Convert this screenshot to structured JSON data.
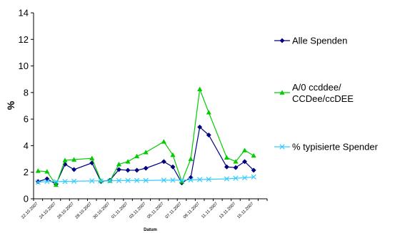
{
  "chart_data": {
    "type": "line",
    "title": "",
    "xlabel": "Datum",
    "ylabel": "%",
    "ylim": [
      0,
      14
    ],
    "yticks": [
      0,
      2,
      4,
      6,
      8,
      10,
      12,
      14
    ],
    "grid": false,
    "legend_position": "right",
    "x": [
      "22.10.2007",
      "23.10.2007",
      "24.10.2007",
      "25.10.2007",
      "26.10.2007",
      "27.10.2007",
      "28.10.2007",
      "29.10.2007",
      "30.10.2007",
      "31.10.2007",
      "01.11.2007",
      "02.11.2007",
      "03.11.2007",
      "04.11.2007",
      "05.11.2007",
      "06.11.2007",
      "07.11.2007",
      "08.11.2007",
      "09.11.2007",
      "10.11.2007",
      "11.11.2007",
      "12.11.2007",
      "13.11.2007",
      "14.11.2007",
      "15.11.2007",
      "16.11.2007"
    ],
    "x_tick_labels": [
      "22.10.2007",
      "24.10.2007",
      "26.10.2007",
      "28.10.2007",
      "30.10.2007",
      "01.11.2007",
      "03.11.2007",
      "05.11.2007",
      "07.11.2007",
      "09.11.2007",
      "11.11.2007",
      "13.11.2007",
      "15.11.2007"
    ],
    "series": [
      {
        "name": "Alle Spenden",
        "color": "#000080",
        "marker": "diamond",
        "x": [
          "22.10.2007",
          "23.10.2007",
          "24.10.2007",
          "25.10.2007",
          "26.10.2007",
          "28.10.2007",
          "29.10.2007",
          "30.10.2007",
          "31.10.2007",
          "01.11.2007",
          "02.11.2007",
          "03.11.2007",
          "05.11.2007",
          "06.11.2007",
          "07.11.2007",
          "08.11.2007",
          "09.11.2007",
          "10.11.2007",
          "12.11.2007",
          "13.11.2007",
          "14.11.2007",
          "15.11.2007"
        ],
        "values": [
          1.3,
          1.5,
          1.1,
          2.6,
          2.2,
          2.7,
          1.3,
          1.4,
          2.2,
          2.15,
          2.15,
          2.3,
          2.8,
          2.4,
          1.2,
          1.6,
          5.4,
          4.8,
          2.4,
          2.35,
          2.8,
          2.15
        ]
      },
      {
        "name": "A/0 ccddee/\nCCDee/ccDEE",
        "color": "#00cc00",
        "marker": "triangle",
        "x": [
          "22.10.2007",
          "23.10.2007",
          "24.10.2007",
          "25.10.2007",
          "26.10.2007",
          "28.10.2007",
          "29.10.2007",
          "30.10.2007",
          "31.10.2007",
          "01.11.2007",
          "02.11.2007",
          "03.11.2007",
          "05.11.2007",
          "06.11.2007",
          "07.11.2007",
          "08.11.2007",
          "09.11.2007",
          "10.11.2007",
          "12.11.2007",
          "13.11.2007",
          "14.11.2007",
          "15.11.2007"
        ],
        "values": [
          2.1,
          2.05,
          1.05,
          2.9,
          2.95,
          3.05,
          1.35,
          1.35,
          2.6,
          2.8,
          3.2,
          3.5,
          4.3,
          3.3,
          1.3,
          3.0,
          8.25,
          6.5,
          3.1,
          2.8,
          3.65,
          3.25
        ]
      },
      {
        "name": "% typisierte Spender",
        "color": "#33ccff",
        "marker": "x",
        "x": [
          "22.10.2007",
          "23.10.2007",
          "24.10.2007",
          "25.10.2007",
          "26.10.2007",
          "28.10.2007",
          "29.10.2007",
          "30.10.2007",
          "31.10.2007",
          "01.11.2007",
          "02.11.2007",
          "03.11.2007",
          "05.11.2007",
          "06.11.2007",
          "07.11.2007",
          "08.11.2007",
          "09.11.2007",
          "10.11.2007",
          "12.11.2007",
          "13.11.2007",
          "14.11.2007",
          "15.11.2007"
        ],
        "values": [
          1.25,
          1.3,
          1.3,
          1.3,
          1.32,
          1.35,
          1.35,
          1.35,
          1.37,
          1.38,
          1.38,
          1.38,
          1.4,
          1.4,
          1.4,
          1.42,
          1.45,
          1.47,
          1.5,
          1.55,
          1.58,
          1.65
        ]
      }
    ]
  }
}
